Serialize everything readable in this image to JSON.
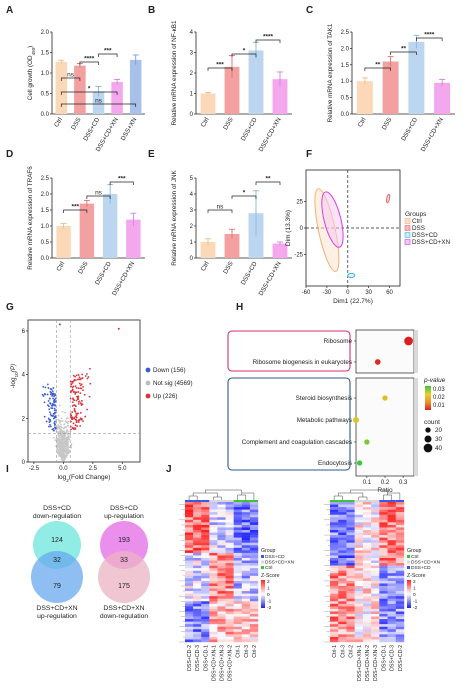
{
  "panels": {
    "A": {
      "letter": "A",
      "ylabel": "Cell growth (OD",
      "ylabel_sub": "450",
      "ticks": [
        "0.0",
        "0.5",
        "1.0",
        "1.5",
        "2.0"
      ],
      "sig": [
        "ns",
        "*",
        "ns",
        "****",
        "***"
      ]
    },
    "B": {
      "letter": "B",
      "ylabel": "Relative mRNA expression of  NF-κB1",
      "ticks": [
        "0",
        "1",
        "2",
        "3",
        "4"
      ],
      "sig": [
        "***",
        "*",
        "****"
      ]
    },
    "C": {
      "letter": "C",
      "ylabel": "Relative mRNA expression of  TAK1",
      "ticks": [
        "0.0",
        "0.5",
        "1.0",
        "1.5",
        "2.0",
        "2.5"
      ],
      "sig": [
        "**",
        "**",
        "****"
      ]
    },
    "D": {
      "letter": "D",
      "ylabel": "Relative mRNA expression of  TRAF6",
      "ticks": [
        "0.0",
        "0.5",
        "1.0",
        "1.5",
        "2.0",
        "2.5"
      ],
      "sig": [
        "***",
        "ns",
        "***"
      ]
    },
    "E": {
      "letter": "E",
      "ylabel": "Relative mRNA expression of  JNK",
      "ticks": [
        "0",
        "1",
        "2",
        "3",
        "4",
        "5"
      ],
      "sig": [
        "ns",
        "*",
        "**"
      ]
    },
    "F": {
      "letter": "F",
      "xlabel": "Dim1 (22.7%)",
      "ylabel": "Dim (13.3%)",
      "xticks": [
        "-60",
        "-30",
        "0",
        "30",
        "60"
      ],
      "yticks": [
        "25",
        "0",
        "-25"
      ],
      "legend_title": "Groups"
    },
    "G": {
      "letter": "G",
      "xlabel": "log",
      "xlabel_sub": "2",
      "xlabel_tail": "(Fold Change)",
      "ylabel": "-log",
      "ylabel_sub": "10",
      "ylabel_tail": "(P)",
      "xticks": [
        "-2.5",
        "0.0",
        "2.5",
        "5.0"
      ],
      "yticks": [
        "0",
        "2",
        "4",
        "6"
      ],
      "legend": [
        {
          "label": "Down (156)",
          "color": "#3b5bd6"
        },
        {
          "label": "Not sig (4569)",
          "color": "#bdbdbd"
        },
        {
          "label": "Up (226)",
          "color": "#e0303a"
        }
      ]
    },
    "H": {
      "letter": "H",
      "xlabel": "Ratio",
      "xticks": [
        "0.1",
        "0.2",
        "0.3"
      ],
      "terms": [
        "Ribosome",
        "Ribosome biogenesis in eukaryotes",
        "Steroid biosynthesis",
        "Metabolic pathways",
        "Complement and coagulation cascades",
        "Endocytosis"
      ],
      "pvalue_title": "p-value",
      "pvalue_ticks": [
        "0.03",
        "0.02",
        "0.01"
      ],
      "count_title": "count",
      "count_ticks": [
        "20",
        "30",
        "40"
      ]
    },
    "I": {
      "letter": "I",
      "v1": {
        "top": "DSS+CD",
        "top2": "down-regulation",
        "bottom": "DSS+CD+XN",
        "bottom2": "up-regulation",
        "a": "124",
        "both": "32",
        "b": "79"
      },
      "v2": {
        "top": "DSS+CD",
        "top2": "up-regulation",
        "bottom": "DSS+CD+XN",
        "bottom2": "down-regulation",
        "a": "193",
        "both": "33",
        "b": "175"
      }
    },
    "J": {
      "letter": "J",
      "group_title": "Group",
      "zscore_title": "Z-Score",
      "z_ticks": [
        "2",
        "1",
        "0",
        "-1",
        "-2"
      ],
      "left_legend": [
        "DSS+CD",
        "DSS+CD+XN",
        "Ctrl"
      ],
      "right_legend": [
        "Ctrl",
        "DSS+CD+XN",
        "DSS+CD"
      ],
      "left_cols": [
        "DSS+CD-2",
        "DSS+CD-3",
        "DSS+CD-1",
        "DSS+CD+XN-1",
        "DSS+CD+XN-3",
        "DSS+CD+XN-2",
        "Ctrl-1",
        "Ctrl-3",
        "Ctrl-2"
      ],
      "right_cols": [
        "Ctrl-1",
        "Ctrl-3",
        "Ctrl-2",
        "DSS+CD+XN-1",
        "DSS+CD+XN-2",
        "DSS+CD+XN-3",
        "DSS+CD-1",
        "DSS+CD-3",
        "DSS+CD-2"
      ]
    }
  },
  "groups": [
    "Ctrl",
    "DSS",
    "DSS+CD",
    "DSS+CD+XN"
  ],
  "group_colors": [
    "#fbd9b8",
    "#f2a0a0",
    "#bcd6f0",
    "#f3a8ee"
  ],
  "chart_data": [
    {
      "type": "bar",
      "panel": "A",
      "categories": [
        "Ctrl",
        "DSS",
        "DSS+CD",
        "DSS+CD+XN",
        "DSS+XN"
      ],
      "values": [
        1.27,
        1.18,
        0.55,
        0.78,
        1.32
      ],
      "errors": [
        0.04,
        0.05,
        0.12,
        0.06,
        0.12
      ],
      "ylim": [
        0,
        2.0
      ]
    },
    {
      "type": "bar",
      "panel": "B",
      "categories": [
        "Ctrl",
        "DSS",
        "DSS+CD",
        "DSS+CD+XN"
      ],
      "values": [
        1.0,
        2.3,
        3.1,
        1.7
      ],
      "errors": [
        0.04,
        0.55,
        0.4,
        0.35
      ],
      "ylim": [
        0,
        4
      ]
    },
    {
      "type": "bar",
      "panel": "C",
      "categories": [
        "Ctrl",
        "DSS",
        "DSS+CD",
        "DSS+CD+XN"
      ],
      "values": [
        1.0,
        1.6,
        2.2,
        0.95
      ],
      "errors": [
        0.1,
        0.15,
        0.2,
        0.1
      ],
      "ylim": [
        0,
        2.5
      ]
    },
    {
      "type": "bar",
      "panel": "D",
      "categories": [
        "Ctrl",
        "DSS",
        "DSS+CD",
        "DSS+CD+XN"
      ],
      "values": [
        1.0,
        1.7,
        2.0,
        1.2
      ],
      "errors": [
        0.08,
        0.1,
        0.3,
        0.2
      ],
      "ylim": [
        0,
        2.5
      ]
    },
    {
      "type": "bar",
      "panel": "E",
      "categories": [
        "Ctrl",
        "DSS",
        "DSS+CD",
        "DSS+CD+XN"
      ],
      "values": [
        1.0,
        1.5,
        2.8,
        0.9
      ],
      "errors": [
        0.2,
        0.3,
        1.4,
        0.1
      ],
      "ylim": [
        0,
        5
      ]
    },
    {
      "type": "scatter",
      "panel": "F",
      "series": [
        {
          "name": "Ctrl",
          "cx": -30,
          "cy": -2,
          "rx": 12,
          "ry": 40,
          "color": "#f2b07a"
        },
        {
          "name": "DSS",
          "cx": 58,
          "cy": 28,
          "rx": 2,
          "ry": 4,
          "color": "#e86b6b"
        },
        {
          "name": "DSS+CD",
          "cx": 5,
          "cy": -45,
          "rx": 5,
          "ry": 2,
          "color": "#3ab8e6"
        },
        {
          "name": "DSS+CD+XN",
          "cx": -22,
          "cy": 8,
          "rx": 12,
          "ry": 27,
          "color": "#d93fd9"
        }
      ],
      "xlim": [
        -60,
        75
      ],
      "ylim": [
        -55,
        55
      ]
    },
    {
      "type": "scatter",
      "panel": "G",
      "xlim": [
        -3,
        6.5
      ],
      "ylim": [
        0,
        6.5
      ],
      "series": [
        {
          "name": "Down (156)",
          "n": 156
        },
        {
          "name": "Not sig (4569)",
          "n": 4569
        },
        {
          "name": "Up (226)",
          "n": 226
        }
      ]
    },
    {
      "type": "scatter",
      "panel": "H",
      "points": [
        {
          "term": "Ribosome",
          "ratio": 0.33,
          "p": 0.005,
          "count": 40
        },
        {
          "term": "Ribosome biogenesis in eukaryotes",
          "ratio": 0.16,
          "p": 0.006,
          "count": 22
        },
        {
          "term": "Steroid biosynthesis",
          "ratio": 0.2,
          "p": 0.02,
          "count": 20
        },
        {
          "term": "Metabolic pathways",
          "ratio": 0.04,
          "p": 0.022,
          "count": 24
        },
        {
          "term": "Complement and coagulation cascades",
          "ratio": 0.1,
          "p": 0.027,
          "count": 20
        },
        {
          "term": "Endocytosis",
          "ratio": 0.06,
          "p": 0.03,
          "count": 20
        }
      ],
      "xlim": [
        0.04,
        0.36
      ]
    }
  ]
}
